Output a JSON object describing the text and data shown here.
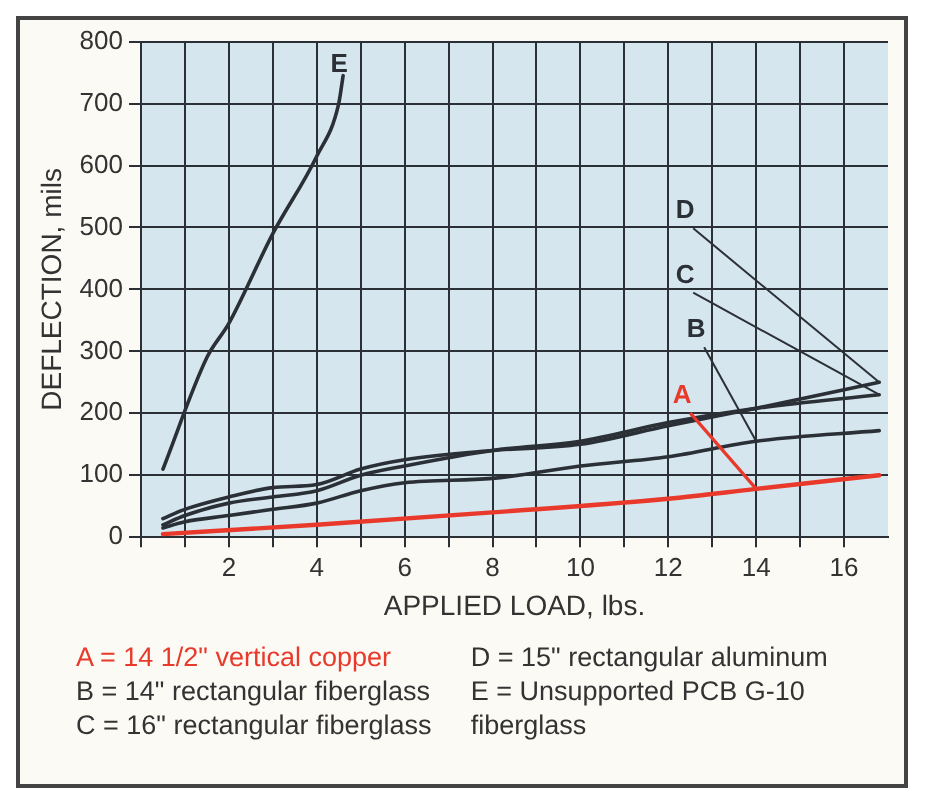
{
  "chart_data": {
    "type": "line",
    "xlabel": "APPLIED LOAD, lbs.",
    "ylabel": "DEFLECTION, mils",
    "xlim": [
      0,
      17
    ],
    "ylim": [
      0,
      800
    ],
    "xticks": [
      {
        "value": 0,
        "label": null
      },
      {
        "value": 1,
        "label": null
      },
      2,
      {
        "value": 3,
        "label": null
      },
      4,
      {
        "value": 5,
        "label": null
      },
      6,
      {
        "value": 7,
        "label": null
      },
      8,
      {
        "value": 9,
        "label": null
      },
      10,
      {
        "value": 11,
        "label": null
      },
      12,
      {
        "value": 13,
        "label": null
      },
      14,
      {
        "value": 15,
        "label": null
      },
      16
    ],
    "yticks": [
      0,
      100,
      200,
      300,
      400,
      500,
      600,
      700,
      800
    ],
    "grid": true,
    "legend": false,
    "marker": "none",
    "line_style": "solid",
    "series": [
      {
        "name": "A",
        "color": "#e8392a",
        "x": [
          0.5,
          4,
          8,
          12,
          14,
          16.8
        ],
        "values": [
          5,
          20,
          40,
          62,
          78,
          100
        ]
      },
      {
        "name": "B",
        "color": "#2b2f36",
        "x": [
          0.5,
          1,
          2,
          3,
          4,
          5,
          6,
          8,
          10,
          12,
          14,
          16.8
        ],
        "values": [
          15,
          25,
          35,
          45,
          55,
          75,
          88,
          95,
          115,
          130,
          155,
          172
        ]
      },
      {
        "name": "C",
        "color": "#2b2f36",
        "x": [
          0.5,
          1,
          2,
          3,
          4,
          5,
          6,
          8,
          10,
          12,
          14,
          16.8
        ],
        "values": [
          20,
          35,
          55,
          65,
          75,
          100,
          115,
          140,
          155,
          185,
          208,
          230
        ]
      },
      {
        "name": "D",
        "color": "#2b2f36",
        "x": [
          0.5,
          1,
          2,
          3,
          4,
          5,
          6,
          8,
          10,
          12,
          14,
          16.8
        ],
        "values": [
          30,
          45,
          65,
          80,
          85,
          110,
          125,
          140,
          150,
          180,
          208,
          250
        ]
      },
      {
        "name": "E",
        "color": "#2b2f36",
        "x": [
          0.5,
          1.5,
          2,
          3,
          4,
          4.5,
          4.6
        ],
        "values": [
          110,
          290,
          345,
          490,
          615,
          700,
          745
        ]
      }
    ],
    "annotations": [
      "A = 14 1/2\" vertical copper",
      "B = 14\" rectangular fiberglass",
      "C = 16\" rectangular fiberglass",
      "D = 15\" rectangular aluminum",
      "E = Unsupported PCB G-10 fiberglass"
    ]
  }
}
